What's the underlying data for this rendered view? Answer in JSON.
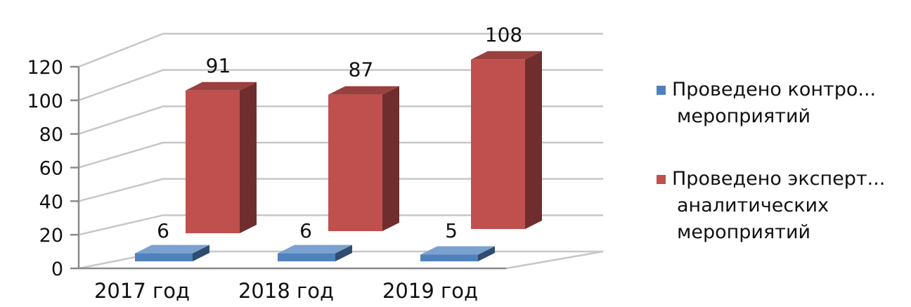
{
  "chart_data": {
    "type": "bar",
    "categories": [
      "2017 год",
      "2018 год",
      "2019 год"
    ],
    "series": [
      {
        "name": "Проведено контрольных мероприятий",
        "legend_lines": [
          "Проведено контро...",
          "мероприятий"
        ],
        "color": "#4f81bd",
        "values": [
          6,
          6,
          5
        ]
      },
      {
        "name": "Проведено экспертно-аналитических мероприятий",
        "legend_lines": [
          "Проведено эксперт...",
          "аналитических",
          "мероприятий"
        ],
        "color": "#c0504d",
        "values": [
          91,
          87,
          108
        ]
      }
    ],
    "yticks": [
      0,
      20,
      40,
      60,
      80,
      100,
      120
    ],
    "ylim": [
      0,
      120
    ],
    "grid": true,
    "legend": "right",
    "style": "3d-column"
  }
}
